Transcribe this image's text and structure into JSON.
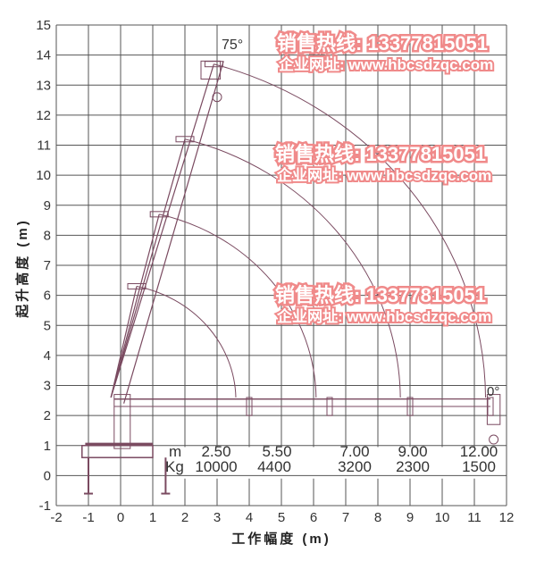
{
  "diagram": {
    "x_axis": {
      "label": "工作幅度 (m)",
      "min": -2,
      "max": 12,
      "ticks": [
        -2,
        -1,
        0,
        1,
        2,
        3,
        4,
        5,
        6,
        7,
        8,
        9,
        10,
        11,
        12
      ]
    },
    "y_axis": {
      "label": "起升高度 (m)",
      "min": -1,
      "max": 15,
      "ticks": [
        -1,
        0,
        1,
        2,
        3,
        4,
        5,
        6,
        7,
        8,
        9,
        10,
        11,
        12,
        13,
        14,
        15
      ]
    },
    "angle_labels": {
      "max": "75°",
      "min": "0°"
    },
    "load_table": {
      "radius_unit": "m",
      "load_unit": "Kg",
      "radius": [
        "2.50",
        "5.50",
        "7.00",
        "9.00",
        "12.00"
      ],
      "load": [
        "10000",
        "4400",
        "3200",
        "2300",
        "1500"
      ]
    },
    "boom_tips": [
      {
        "x": 2.9,
        "y": 13.7,
        "reach": 11.5
      },
      {
        "x": 2.0,
        "y": 11.2,
        "reach": 9.0
      },
      {
        "x": 1.2,
        "y": 8.7,
        "reach": 6.5
      },
      {
        "x": 0.5,
        "y": 6.3,
        "reach": 4.0
      }
    ],
    "line_color": "#7a4a60"
  },
  "watermark": {
    "sales_line": "销售热线: 13377815051",
    "website_line": "企业网址: www.hbcsdzqc.com",
    "color": "#f08a8a"
  }
}
